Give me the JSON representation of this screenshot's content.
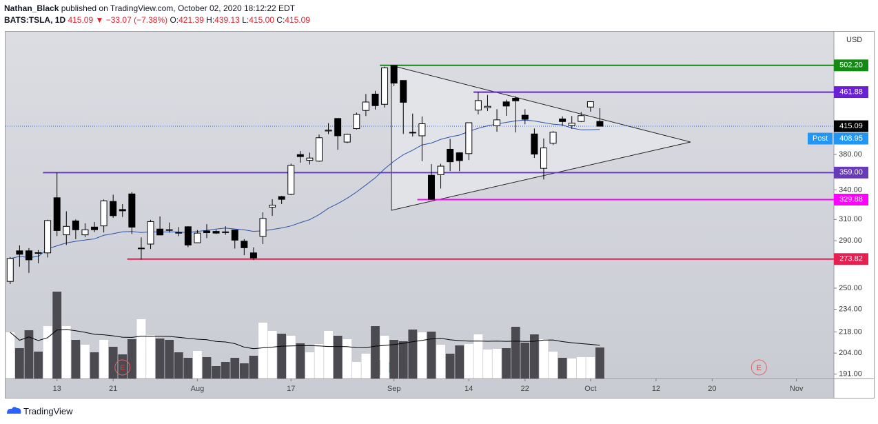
{
  "header": {
    "author": "Nathan_Black",
    "published": "published on TradingView.com, October 02, 2020 18:12:22 EDT",
    "symbol": "BATS:TSLA, 1D",
    "last": "415.09",
    "change": "▼ −33.07 (−7.38%)",
    "o_label": "O:",
    "o": "421.39",
    "h_label": "H:",
    "h": "439.13",
    "l_label": "L:",
    "l": "415.00",
    "c_label": "C:",
    "c": "415.09"
  },
  "footer": {
    "brand": "TradingView"
  },
  "chart_data": {
    "type": "candlestick",
    "scale": "log",
    "currency": "USD",
    "ylim": [
      188.4,
      558
    ],
    "xlim": [
      -0.5,
      88
    ],
    "yticks": [
      {
        "value": 191,
        "label": "191.00"
      },
      {
        "value": 204,
        "label": "204.00"
      },
      {
        "value": 218,
        "label": "218.00"
      },
      {
        "value": 234,
        "label": "234.00"
      },
      {
        "value": 250,
        "label": "250.00"
      },
      {
        "value": 290,
        "label": "290.00"
      },
      {
        "value": 310,
        "label": "310.00"
      },
      {
        "value": 340,
        "label": "340.00"
      },
      {
        "value": 380,
        "label": "380.00"
      }
    ],
    "xticks": [
      {
        "value": 5,
        "label": "13"
      },
      {
        "value": 11,
        "label": "21"
      },
      {
        "value": 20,
        "label": "Aug"
      },
      {
        "value": 30,
        "label": "17"
      },
      {
        "value": 41,
        "label": "Sep"
      },
      {
        "value": 49,
        "label": "14"
      },
      {
        "value": 55,
        "label": "22"
      },
      {
        "value": 62,
        "label": "Oct"
      },
      {
        "value": 69,
        "label": "12"
      },
      {
        "value": 75,
        "label": "20"
      },
      {
        "value": 84,
        "label": "Nov"
      }
    ],
    "open": [
      255.34,
      281,
      281,
      279.4,
      279.2,
      331.8,
      295.43,
      308.6,
      295.43,
      302.7,
      303.8,
      327.99,
      319.8,
      335.79,
      283.2,
      287,
      300.8,
      300.2,
      297.6,
      303,
      288.2,
      299,
      298.6,
      298.17,
      299.9,
      289.6,
      279.2,
      294,
      322.2,
      333,
      335.4,
      379.8,
      373,
      372.14,
      408.95,
      425.26,
      394.98,
      412,
      436.09,
      459.02,
      444.61,
      502.14,
      478.99,
      407.23,
      402.81,
      356,
      356.6,
      386.21,
      381.94,
      380.95,
      436.56,
      439.87,
      415.6,
      447.94,
      453.13,
      429.6,
      405.16,
      363.8,
      393.47,
      424.62,
      416,
      421.32,
      440.76,
      421.39
    ],
    "high": [
      275.56,
      285.9,
      283.45,
      281.7,
      309.78,
      359,
      318,
      310,
      306.34,
      307.5,
      330,
      335,
      325.28,
      337.8,
      293,
      309.59,
      312.94,
      306.96,
      302.65,
      303.41,
      299.92,
      305.48,
      300.2,
      303.46,
      299.95,
      291.5,
      284,
      317,
      330.24,
      333.76,
      369.17,
      384,
      382.2,
      404.4,
      419.1,
      425.8,
      405.59,
      433.2,
      459.12,
      463.7,
      500.14,
      502.49,
      479.04,
      431.8,
      428,
      368.74,
      369,
      398.99,
      382.5,
      420,
      461.94,
      457.79,
      437.79,
      451,
      455.68,
      437.76,
      412.15,
      399.5,
      408.73,
      428.08,
      428.5,
      433.93,
      448.88,
      439.13
    ],
    "low": [
      253.21,
      267.34,
      262.27,
      270.26,
      275.2,
      294.22,
      286.2,
      291.4,
      293.2,
      298,
      297.6,
      311.6,
      312.4,
      296.15,
      273.3,
      282.6,
      294.88,
      297.4,
      294.2,
      284.2,
      288,
      292.4,
      296.2,
      295.45,
      283,
      277.17,
      273,
      287,
      313.45,
      325.33,
      334.57,
      370.2,
      368.24,
      371.41,
      405.01,
      385.5,
      393.6,
      410.73,
      428.5,
      437.3,
      440.11,
      470.51,
      405.12,
      402,
      372.02,
      329.88,
      341.51,
      360.56,
      360.5,
      373.3,
      430.7,
      435.31,
      408,
      428.8,
      407.07,
      417.6,
      375.88,
      351.3,
      391.3,
      415.55,
      411.6,
      420.47,
      434.42,
      415
    ],
    "close": [
      274.32,
      277.97,
      273.18,
      278.86,
      308.93,
      299.41,
      303.36,
      300.13,
      300.17,
      300.17,
      328.6,
      313.67,
      318.47,
      302.61,
      283.4,
      307.92,
      295.3,
      299.82,
      297.5,
      286.15,
      297,
      297.4,
      297,
      297.92,
      290.54,
      283.71,
      274.88,
      310.95,
      324.2,
      330.14,
      367.13,
      377.42,
      375.71,
      400.37,
      409.99,
      402.84,
      404.67,
      430.63,
      447.75,
      442.68,
      498.32,
      475.05,
      447.37,
      407,
      418.32,
      330.21,
      366.28,
      371.34,
      372.72,
      419.62,
      449.76,
      441.76,
      423.43,
      442.15,
      449.39,
      424.23,
      380.36,
      387.79,
      407.34,
      421.2,
      419.07,
      429.01,
      448.16,
      415.09
    ],
    "volume": {
      "vlim": [
        0,
        130
      ],
      "up_color": "#ffffff",
      "down_color": "#4a4a50",
      "ma_color": "#000000",
      "values": [
        67,
        44,
        70,
        39,
        76,
        126,
        76,
        56,
        49,
        38,
        56,
        46,
        35,
        57,
        86,
        63,
        58,
        56,
        38,
        30,
        40,
        31,
        18,
        24,
        30,
        22,
        33,
        81,
        69,
        65,
        62,
        51,
        38,
        50,
        69,
        62,
        57,
        24,
        36,
        76,
        62,
        56,
        54,
        71,
        67,
        68,
        49,
        36,
        48,
        50,
        64,
        42,
        43,
        44,
        75,
        52,
        64,
        57,
        39,
        30,
        29,
        31,
        31,
        45
      ]
    },
    "ma_period": 20,
    "ma_color": "#2950a8",
    "levels": [
      {
        "value": 502.2,
        "label": "502.20",
        "color": "#138a13",
        "start": 40
      },
      {
        "value": 461.88,
        "label": "461.88",
        "color": "#6a1fd6",
        "start": 50
      },
      {
        "value": 359,
        "label": "359.00",
        "color": "#673ab7",
        "start": 4
      },
      {
        "value": 329.88,
        "label": "329.88",
        "color": "#ff00ff",
        "start": 44
      },
      {
        "value": 273.82,
        "label": "273.82",
        "color": "#e91e50",
        "start": 13
      }
    ],
    "last": {
      "value": 415.09,
      "label": "415.09",
      "color": "#000000"
    },
    "post": {
      "name": "Post",
      "value": 408.95,
      "label": "408.95",
      "color": "#2196f3"
    },
    "events": [
      {
        "at": 12,
        "label": "E"
      },
      {
        "at": 80,
        "label": "E"
      }
    ]
  }
}
